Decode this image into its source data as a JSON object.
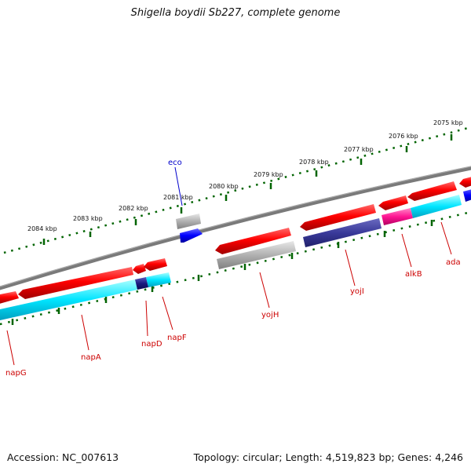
{
  "title": "Shigella boydii Sb227, complete genome",
  "accession": "Accession: NC_007613",
  "summary": "Topology: circular; Length: 4,519,823 bp; Genes: 4,246",
  "ticks": [
    "2075 kbp",
    "2076 kbp",
    "2077 kbp",
    "2078 kbp",
    "2079 kbp",
    "2080 kbp",
    "2081 kbp",
    "2082 kbp",
    "2083 kbp",
    "2084 kbp"
  ],
  "genes": [
    "napG",
    "napA",
    "napD",
    "napF",
    "eco",
    "yojH",
    "yojI",
    "alkB",
    "ada"
  ],
  "colors": {
    "forward": "#ff0000",
    "reverse_grey": "#aaaaaa",
    "rna": "#0000ff",
    "cyan": "#00e5ff",
    "navy": "#1a1a80",
    "magenta": "#ff1493",
    "backbone": "#777777",
    "tick": "#006400"
  }
}
